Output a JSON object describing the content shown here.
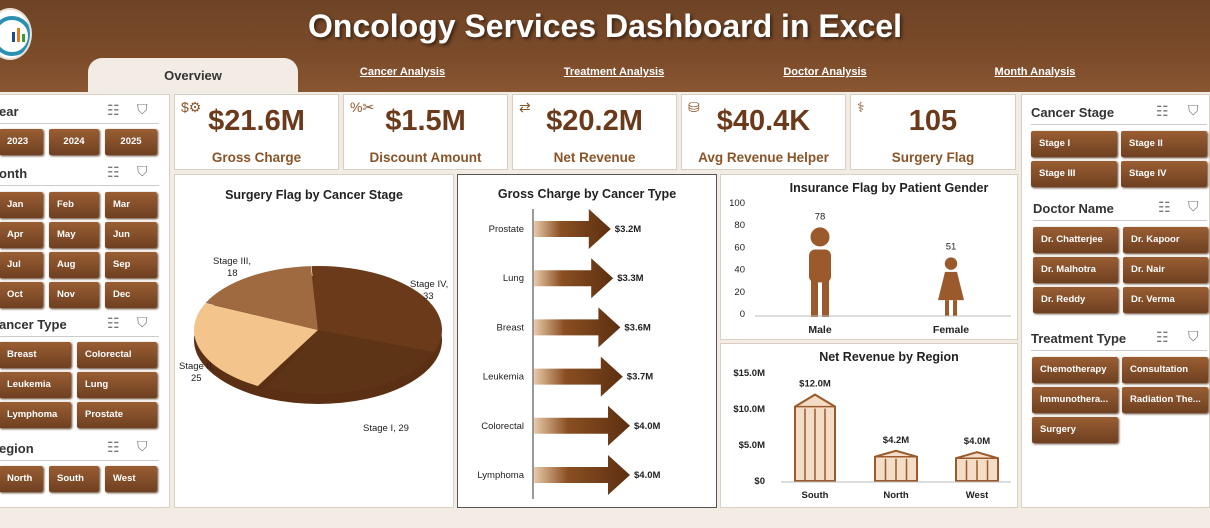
{
  "header": {
    "title": "Oncology Services Dashboard in Excel"
  },
  "tabs": [
    "Overview",
    "Cancer Analysis",
    "Treatment Analysis",
    "Doctor Analysis",
    "Month Analysis"
  ],
  "left": {
    "year": {
      "label": "ear",
      "options": [
        "2023",
        "2024",
        "2025"
      ]
    },
    "month": {
      "label": "onth",
      "options": [
        "Jan",
        "Feb",
        "Mar",
        "Apr",
        "May",
        "Jun",
        "Jul",
        "Aug",
        "Sep",
        "Oct",
        "Nov",
        "Dec"
      ]
    },
    "cancer_type": {
      "label": "ancer Type",
      "options": [
        "Breast",
        "Colorectal",
        "Leukemia",
        "Lung",
        "Lymphoma",
        "Prostate"
      ]
    },
    "region": {
      "label": "egion",
      "options": [
        "North",
        "South",
        "West"
      ]
    }
  },
  "kpis": [
    {
      "value": "$21.6M",
      "label": "Gross Charge"
    },
    {
      "value": "$1.5M",
      "label": "Discount Amount"
    },
    {
      "value": "$20.2M",
      "label": "Net Revenue"
    },
    {
      "value": "$40.4K",
      "label": "Avg Revenue Helper"
    },
    {
      "value": "105",
      "label": "Surgery Flag"
    }
  ],
  "right": {
    "cancer_stage": {
      "label": "Cancer Stage",
      "options": [
        "Stage I",
        "Stage II",
        "Stage III",
        "Stage IV"
      ]
    },
    "doctor": {
      "label": "Doctor Name",
      "options": [
        "Dr. Chatterjee",
        "Dr. Kapoor",
        "Dr. Malhotra",
        "Dr. Nair",
        "Dr. Reddy",
        "Dr. Verma"
      ]
    },
    "treatment": {
      "label": "Treatment Type",
      "options": [
        "Chemotherapy",
        "Consultation",
        "Immunothera...",
        "Radiation The...",
        "Surgery"
      ]
    }
  },
  "chart_data": [
    {
      "type": "pie",
      "title": "Surgery Flag by Cancer Stage",
      "categories": [
        "Stage I",
        "Stage II",
        "Stage III",
        "Stage IV"
      ],
      "values": [
        29,
        25,
        18,
        33
      ],
      "labels": [
        "Stage I, 29",
        "Stage II,",
        "25",
        "Stage III,",
        "18",
        "Stage IV,",
        "33"
      ]
    },
    {
      "type": "bar",
      "title": "Gross Charge by Cancer Type",
      "categories": [
        "Prostate",
        "Lung",
        "Breast",
        "Leukemia",
        "Colorectal",
        "Lymphoma"
      ],
      "values": [
        3.2,
        3.3,
        3.6,
        3.7,
        4.0,
        4.0
      ],
      "data_labels": [
        "$3.2M",
        "$3.3M",
        "$3.6M",
        "$3.7M",
        "$4.0M",
        "$4.0M"
      ]
    },
    {
      "type": "bar",
      "title": "Insurance Flag by Patient Gender",
      "categories": [
        "Male",
        "Female"
      ],
      "values": [
        78,
        51
      ],
      "ylim": [
        0,
        100
      ],
      "yticks": [
        "100",
        "80",
        "60",
        "40",
        "20",
        "0"
      ]
    },
    {
      "type": "bar",
      "title": "Net Revenue by Region",
      "categories": [
        "South",
        "North",
        "West"
      ],
      "values": [
        12.0,
        4.2,
        4.0
      ],
      "ylim": [
        0,
        15
      ],
      "data_labels": [
        "$12.0M",
        "$4.2M",
        "$4.0M"
      ],
      "yticks": [
        "$15.0M",
        "$10.0M",
        "$5.0M",
        "$0"
      ]
    }
  ],
  "colors": {
    "brown_dark": "#6b3a1b",
    "brown": "#8a5428",
    "accent": "#a0673a"
  }
}
